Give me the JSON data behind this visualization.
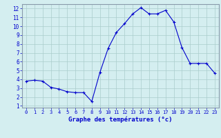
{
  "hours": [
    0,
    1,
    2,
    3,
    4,
    5,
    6,
    7,
    8,
    9,
    10,
    11,
    12,
    13,
    14,
    15,
    16,
    17,
    18,
    19,
    20,
    21,
    22,
    23
  ],
  "temps": [
    3.8,
    3.9,
    3.8,
    3.1,
    2.9,
    2.6,
    2.5,
    2.5,
    1.5,
    4.8,
    7.5,
    9.3,
    10.3,
    11.4,
    12.1,
    11.4,
    11.4,
    11.8,
    10.5,
    7.6,
    5.8,
    5.8,
    5.8,
    4.7
  ],
  "xlabel": "Graphe des températures (°c)",
  "line_color": "#0000cc",
  "marker_color": "#0000cc",
  "bg_color": "#d4eef0",
  "grid_color": "#aacccc",
  "axis_label_color": "#0000cc",
  "tick_color": "#0000cc",
  "border_color": "#8899aa",
  "ylim": [
    0.8,
    12.5
  ],
  "yticks": [
    1,
    2,
    3,
    4,
    5,
    6,
    7,
    8,
    9,
    10,
    11,
    12
  ],
  "xlim": [
    -0.5,
    23.5
  ],
  "xticks": [
    0,
    1,
    2,
    3,
    4,
    5,
    6,
    7,
    8,
    9,
    10,
    11,
    12,
    13,
    14,
    15,
    16,
    17,
    18,
    19,
    20,
    21,
    22,
    23
  ],
  "xtick_labels": [
    "0",
    "1",
    "2",
    "3",
    "4",
    "5",
    "6",
    "7",
    "8",
    "9",
    "10",
    "11",
    "12",
    "13",
    "14",
    "15",
    "16",
    "17",
    "18",
    "19",
    "20",
    "21",
    "22",
    "23"
  ]
}
